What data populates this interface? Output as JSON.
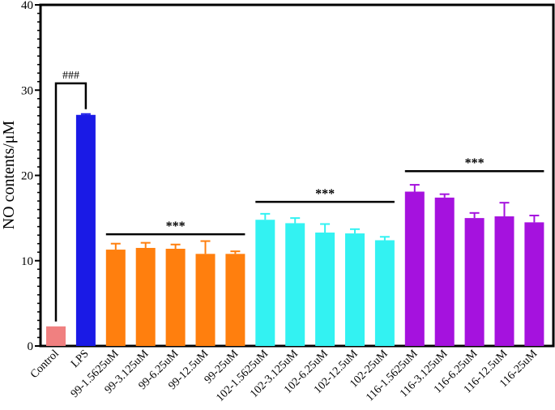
{
  "chart_data": {
    "type": "bar",
    "title": "",
    "xlabel": "",
    "ylabel": "NO contents/μM",
    "ylim": [
      0,
      40
    ],
    "yticks": [
      0,
      10,
      20,
      30,
      40
    ],
    "grid": false,
    "categories": [
      "Control",
      "LPS",
      "99-1.5625uM",
      "99-3.125uM",
      "99-6.25uM",
      "99-12.5uM",
      "99-25uM",
      "102-1.5625uM",
      "102-3.125uM",
      "102-6.25uM",
      "102-12.5uM",
      "102-25uM",
      "116-1.5625uM",
      "116-3.125uM",
      "116-6.25uM",
      "116-12.5uM",
      "116-25uM"
    ],
    "values": [
      2.3,
      27.1,
      11.3,
      11.5,
      11.4,
      10.8,
      10.8,
      14.8,
      14.4,
      13.3,
      13.2,
      12.4,
      18.1,
      17.4,
      15.0,
      15.2,
      14.5
    ],
    "errors": [
      0.0,
      0.1,
      0.7,
      0.6,
      0.5,
      1.5,
      0.3,
      0.7,
      0.6,
      1.0,
      0.5,
      0.4,
      0.8,
      0.4,
      0.6,
      1.6,
      0.8
    ],
    "colors": [
      "#f08080",
      "#1a1ae6",
      "#ff7f0e",
      "#ff7f0e",
      "#ff7f0e",
      "#ff7f0e",
      "#ff7f0e",
      "#33f2f2",
      "#33f2f2",
      "#33f2f2",
      "#33f2f2",
      "#33f2f2",
      "#a512de",
      "#a512de",
      "#a512de",
      "#a512de",
      "#a512de"
    ],
    "annotations": [
      {
        "text": "###",
        "type": "bracket",
        "from": 0,
        "to": 1,
        "level": 30.8
      },
      {
        "text": "***",
        "type": "line",
        "from": 2,
        "to": 6,
        "level": 13.1
      },
      {
        "text": "***",
        "type": "line",
        "from": 7,
        "to": 11,
        "level": 16.9
      },
      {
        "text": "***",
        "type": "line",
        "from": 12,
        "to": 16,
        "level": 20.5
      }
    ]
  }
}
